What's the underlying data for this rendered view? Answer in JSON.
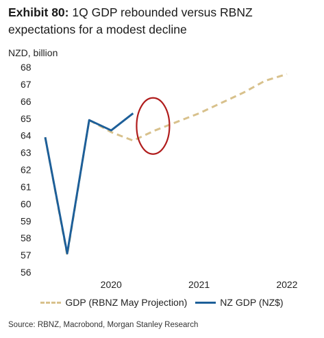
{
  "title": {
    "exhibit": "Exhibit 80:",
    "text": "1Q GDP rebounded versus RBNZ expectations for a modest decline"
  },
  "source": "Source: RBNZ, Macrobond, Morgan Stanley Research",
  "colors": {
    "projection": "#d8c18c",
    "actual": "#1d5f99",
    "highlight": "#b01c1c"
  },
  "chart_data": {
    "type": "line",
    "ylabel": "NZD, billion",
    "ylim": [
      56,
      68
    ],
    "yticks": [
      "56",
      "57",
      "58",
      "59",
      "60",
      "61",
      "62",
      "63",
      "64",
      "65",
      "66",
      "67",
      "68"
    ],
    "xticks": [
      "2020",
      "2021",
      "2022"
    ],
    "x": [
      "2019Q3",
      "2019Q4",
      "2020Q1",
      "2020Q2",
      "2020Q3",
      "2020Q4",
      "2021Q1",
      "2021Q2",
      "2021Q3",
      "2021Q4",
      "2022Q1",
      "2022Q2",
      "2022Q3"
    ],
    "legend_position": "bottom",
    "grid": false,
    "series": [
      {
        "name": "GDP (RBNZ May Projection)",
        "style": "dashed",
        "values": [
          63.9,
          57.0,
          64.9,
          64.2,
          63.7,
          64.3,
          64.8,
          65.3,
          65.9,
          66.5,
          67.2,
          67.6,
          null
        ]
      },
      {
        "name": "NZ GDP (NZ$)",
        "style": "solid",
        "values": [
          63.9,
          57.1,
          64.9,
          64.3,
          65.3,
          null,
          null,
          null,
          null,
          null,
          null,
          null,
          null
        ]
      }
    ],
    "annotations": [
      {
        "type": "ellipse",
        "x": "2020Q4",
        "y": 65.0
      }
    ]
  }
}
